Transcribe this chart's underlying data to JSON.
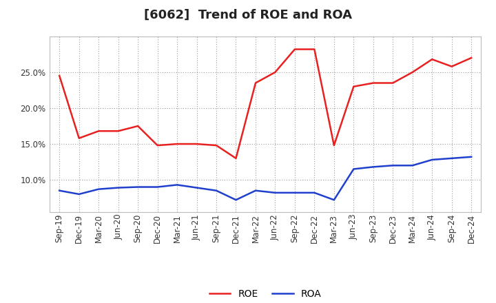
{
  "title": "[6062]  Trend of ROE and ROA",
  "labels": [
    "Sep-19",
    "Dec-19",
    "Mar-20",
    "Jun-20",
    "Sep-20",
    "Dec-20",
    "Mar-21",
    "Jun-21",
    "Sep-21",
    "Dec-21",
    "Mar-22",
    "Jun-22",
    "Sep-22",
    "Dec-22",
    "Mar-23",
    "Jun-23",
    "Sep-23",
    "Dec-23",
    "Mar-24",
    "Jun-24",
    "Sep-24",
    "Dec-24"
  ],
  "ROE": [
    24.5,
    15.8,
    16.8,
    16.8,
    17.5,
    14.8,
    15.0,
    15.0,
    14.8,
    13.0,
    23.5,
    25.0,
    28.2,
    28.2,
    14.8,
    23.0,
    23.5,
    23.5,
    25.0,
    26.8,
    25.8,
    27.0
  ],
  "ROA": [
    8.5,
    8.0,
    8.7,
    8.9,
    9.0,
    9.0,
    9.3,
    8.9,
    8.5,
    7.2,
    8.5,
    8.2,
    8.2,
    8.2,
    7.2,
    11.5,
    11.8,
    12.0,
    12.0,
    12.8,
    13.0,
    13.2
  ],
  "roe_color": "#e82020",
  "roa_color": "#1f3fcc",
  "bg_color": "#ffffff",
  "plot_bg_color": "#ffffff",
  "grid_color": "#999999",
  "ylim": [
    5.5,
    30.0
  ],
  "yticks": [
    10.0,
    15.0,
    20.0,
    25.0
  ],
  "title_fontsize": 13,
  "legend_fontsize": 10,
  "tick_fontsize": 8.5,
  "line_width": 1.8
}
